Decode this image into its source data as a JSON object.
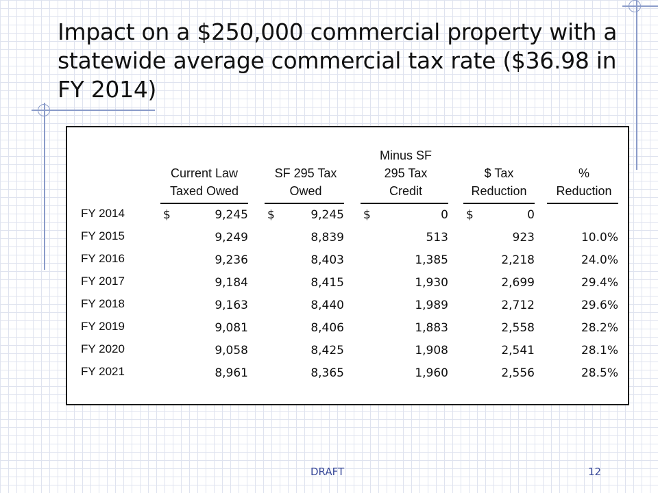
{
  "title": "Impact on a $250,000 commercial property with a statewide average commercial tax rate ($36.98 in FY 2014)",
  "table": {
    "headers": [
      {
        "lines": [
          "Current Law",
          "Taxed Owed"
        ]
      },
      {
        "lines": [
          "SF 295 Tax",
          "Owed"
        ]
      },
      {
        "lines": [
          "Minus SF",
          "295 Tax",
          "Credit"
        ]
      },
      {
        "lines": [
          "$ Tax",
          "Reduction"
        ]
      },
      {
        "lines": [
          "%",
          "Reduction"
        ]
      }
    ],
    "currency_symbol": "$",
    "rows": [
      {
        "year": "FY 2014",
        "current": "9,245",
        "sf295": "9,245",
        "credit": "0",
        "reduction": "0",
        "pct": ""
      },
      {
        "year": "FY 2015",
        "current": "9,249",
        "sf295": "8,839",
        "credit": "513",
        "reduction": "923",
        "pct": "10.0%"
      },
      {
        "year": "FY 2016",
        "current": "9,236",
        "sf295": "8,403",
        "credit": "1,385",
        "reduction": "2,218",
        "pct": "24.0%"
      },
      {
        "year": "FY 2017",
        "current": "9,184",
        "sf295": "8,415",
        "credit": "1,930",
        "reduction": "2,699",
        "pct": "29.4%"
      },
      {
        "year": "FY 2018",
        "current": "9,163",
        "sf295": "8,440",
        "credit": "1,989",
        "reduction": "2,712",
        "pct": "29.6%"
      },
      {
        "year": "FY 2019",
        "current": "9,081",
        "sf295": "8,406",
        "credit": "1,883",
        "reduction": "2,558",
        "pct": "28.2%"
      },
      {
        "year": "FY 2020",
        "current": "9,058",
        "sf295": "8,425",
        "credit": "1,908",
        "reduction": "2,541",
        "pct": "28.1%"
      },
      {
        "year": "FY 2021",
        "current": "8,961",
        "sf295": "8,365",
        "credit": "1,960",
        "reduction": "2,556",
        "pct": "28.5%"
      }
    ]
  },
  "footer": {
    "label": "DRAFT",
    "page_number": "12"
  }
}
